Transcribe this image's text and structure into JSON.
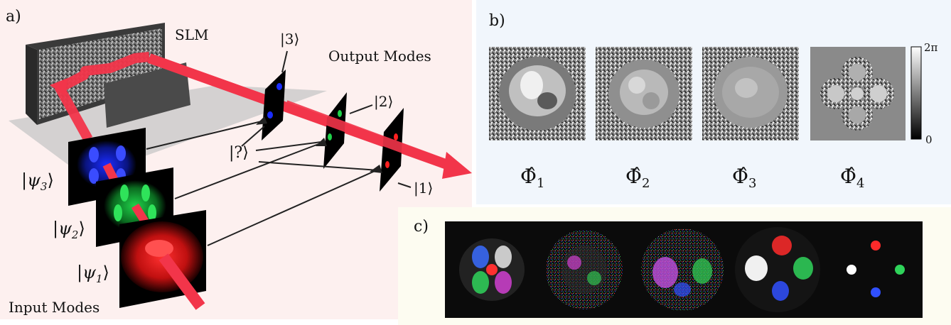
{
  "panels": {
    "a": {
      "label": "a)",
      "slm_label": "SLM",
      "output_modes_label": "Output Modes",
      "input_modes_label": "Input Modes",
      "out_ket_3": "|3⟩",
      "out_ket_2": "|2⟩",
      "out_ket_1": "|1⟩",
      "unknown_ket": "|?⟩",
      "in_ket_3": {
        "open": "|ψ",
        "sub": "3",
        "close": "⟩"
      },
      "in_ket_2": {
        "open": "|ψ",
        "sub": "2",
        "close": "⟩"
      },
      "in_ket_1": {
        "open": "|ψ",
        "sub": "1",
        "close": "⟩"
      },
      "beam_color": "#f2354a",
      "mode_colors": {
        "psi3": "#1a2cff",
        "psi2": "#1fd34a",
        "psi1": "#ff2222"
      }
    },
    "b": {
      "label": "b)",
      "phase_masks": [
        {
          "symbol": "Φ̂",
          "sub": "1"
        },
        {
          "symbol": "Φ̂",
          "sub": "2"
        },
        {
          "symbol": "Φ̂",
          "sub": "3"
        },
        {
          "symbol": "Φ̂",
          "sub": "4"
        }
      ],
      "colorbar_max": "2π",
      "colorbar_min": "0"
    },
    "c": {
      "label": "c)"
    }
  }
}
